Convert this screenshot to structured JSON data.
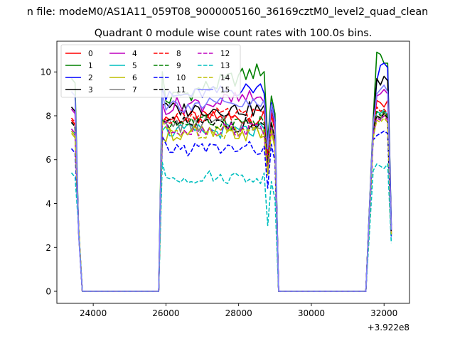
{
  "figure": {
    "suptitle": "n file: modeM0/AS1A11_059T08_9000005160_36169cztM0_level2_quad_clean",
    "title": "Quadrant 0 module wise count rates with 100.0s bins."
  },
  "chart_data": {
    "type": "line",
    "title": "Quadrant 0 module wise count rates with 100.0s bins.",
    "xlabel": "",
    "ylabel": "",
    "x_offset_label": "+3.922e8",
    "xlim": [
      23000,
      32700
    ],
    "ylim": [
      -0.55,
      11.4
    ],
    "xticks": [
      24000,
      26000,
      28000,
      30000,
      32000
    ],
    "xtick_labels": [
      "24000",
      "26000",
      "28000",
      "30000",
      "32000"
    ],
    "yticks": [
      0,
      2,
      4,
      6,
      8,
      10
    ],
    "ytick_labels": [
      "0",
      "2",
      "4",
      "6",
      "8",
      "10"
    ],
    "grid": false,
    "legend": {
      "placement": "top-left",
      "columns": 4
    },
    "segments": {
      "seg1": {
        "x_start": 23400,
        "step": 100,
        "count": 4
      },
      "seg2": {
        "x_start": 25800,
        "step": 100,
        "count": 34
      },
      "seg3": {
        "x_start": 31700,
        "step": 100,
        "count": 6
      },
      "gap_value": 0
    },
    "series": [
      {
        "name": "0",
        "color": "#ff0000",
        "dash": "solid",
        "base": 7.9,
        "ramp": 8.0,
        "end": 7.7,
        "seg3": [
          7.5,
          8.7,
          8.6,
          8.4,
          8.7,
          2.9
        ],
        "amp": 0.35
      },
      {
        "name": "1",
        "color": "#008000",
        "dash": "solid",
        "base": 8.6,
        "ramp": 9.9,
        "end": 8.5,
        "seg3": [
          7.8,
          10.9,
          10.8,
          10.4,
          10.4,
          3.0
        ],
        "amp": 0.4,
        "trend": 1.8
      },
      {
        "name": "2",
        "color": "#0000ff",
        "dash": "solid",
        "base": 8.8,
        "ramp": 9.3,
        "end": 8.2,
        "seg3": [
          7.5,
          9.6,
          10.3,
          10.4,
          10.2,
          3.0
        ],
        "amp": 0.3,
        "trend": 0.6
      },
      {
        "name": "3",
        "color": "#000000",
        "dash": "solid",
        "base": 8.3,
        "ramp": 8.6,
        "end": 7.9,
        "seg3": [
          7.6,
          9.7,
          9.4,
          9.8,
          9.6,
          2.8
        ],
        "amp": 0.35
      },
      {
        "name": "4",
        "color": "#bf00bf",
        "dash": "solid",
        "base": 8.4,
        "ramp": 8.5,
        "end": 7.8,
        "seg3": [
          7.4,
          8.9,
          9.0,
          9.2,
          9.0,
          2.8
        ],
        "amp": 0.4,
        "trend": 0.5
      },
      {
        "name": "5",
        "color": "#00bfbf",
        "dash": "solid",
        "base": 7.3,
        "ramp": 7.6,
        "end": 7.1,
        "seg3": [
          7.0,
          8.2,
          8.1,
          8.3,
          8.0,
          2.6
        ],
        "amp": 0.35
      },
      {
        "name": "6",
        "color": "#bfbf00",
        "dash": "solid",
        "base": 7.2,
        "ramp": 7.4,
        "end": 6.9,
        "seg3": [
          7.0,
          8.0,
          7.9,
          8.1,
          7.8,
          2.6
        ],
        "amp": 0.4
      },
      {
        "name": "7",
        "color": "#808080",
        "dash": "solid",
        "base": 7.6,
        "ramp": 7.5,
        "end": 7.1,
        "seg3": [
          7.0,
          8.0,
          7.8,
          8.2,
          7.9,
          2.7
        ],
        "amp": 0.4
      },
      {
        "name": "8",
        "color": "#ff0000",
        "dash": "dashed",
        "base": 8.0,
        "ramp": 8.1,
        "end": 7.7,
        "seg3": [
          7.4,
          8.4,
          8.2,
          8.3,
          8.1,
          2.7
        ],
        "amp": 0.35
      },
      {
        "name": "9",
        "color": "#008000",
        "dash": "dashed",
        "base": 7.7,
        "ramp": 7.9,
        "end": 7.3,
        "seg3": [
          7.3,
          8.2,
          8.0,
          8.2,
          8.0,
          2.6
        ],
        "amp": 0.35
      },
      {
        "name": "10",
        "color": "#0000ff",
        "dash": "dashed",
        "base": 6.5,
        "ramp": 6.7,
        "end": 6.3,
        "seg3": [
          6.9,
          7.1,
          7.2,
          7.3,
          7.2,
          2.5
        ],
        "amp": 0.35
      },
      {
        "name": "11",
        "color": "#000000",
        "dash": "dashed",
        "base": 7.6,
        "ramp": 7.9,
        "end": 7.3,
        "seg3": [
          7.3,
          8.0,
          7.9,
          8.1,
          7.9,
          2.6
        ],
        "amp": 0.35
      },
      {
        "name": "12",
        "color": "#bf00bf",
        "dash": "dashed",
        "base": 7.4,
        "ramp": 7.6,
        "end": 7.1,
        "seg3": [
          7.1,
          7.9,
          7.8,
          8.0,
          7.8,
          2.6
        ],
        "amp": 0.35
      },
      {
        "name": "13",
        "color": "#00bfbf",
        "dash": "dashed",
        "base": 5.2,
        "ramp": 5.6,
        "end": 4.6,
        "seg3": [
          5.5,
          5.8,
          5.7,
          5.6,
          5.8,
          2.2
        ],
        "amp": 0.3
      },
      {
        "name": "14",
        "color": "#bfbf00",
        "dash": "dashed",
        "base": 7.3,
        "ramp": 7.5,
        "end": 7.0,
        "seg3": [
          7.0,
          7.8,
          7.7,
          7.9,
          7.7,
          2.6
        ],
        "amp": 0.35
      },
      {
        "name": "15",
        "color": "#8080ff",
        "dash": "solid",
        "base": 8.5,
        "ramp": 9.2,
        "end": 8.1,
        "seg3": [
          7.6,
          9.0,
          9.2,
          9.4,
          9.1,
          2.8
        ],
        "amp": 0.35,
        "seg1": [
          9.1,
          8.9,
          2.5,
          0
        ]
      }
    ]
  }
}
